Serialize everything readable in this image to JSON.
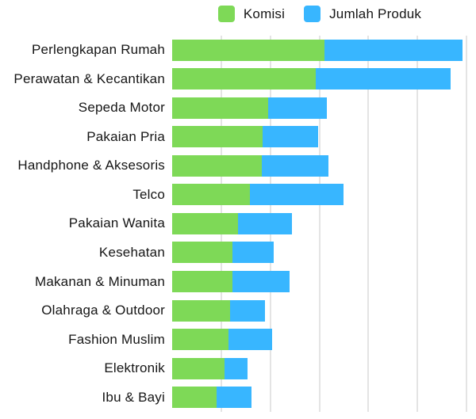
{
  "colors": {
    "komisi": "#7ED957",
    "jumlah_produk": "#38B6FF",
    "gridline": "#E4E4E4",
    "text": "#151515",
    "background": "#FFFFFF"
  },
  "legend": {
    "position": "top-center",
    "items": [
      {
        "label": "Komisi",
        "color": "#7ED957"
      },
      {
        "label": "Jumlah Produk",
        "color": "#38B6FF"
      }
    ]
  },
  "chart_data": {
    "type": "bar",
    "orientation": "horizontal",
    "stacked": true,
    "title": "",
    "xlabel": "",
    "ylabel": "",
    "categories": [
      "Perlengkapan Rumah",
      "Perawatan & Kecantikan",
      "Sepeda Motor",
      "Pakaian Pria",
      "Handphone & Aksesoris",
      "Telco",
      "Pakaian Wanita",
      "Kesehatan",
      "Makanan & Minuman",
      "Olahraga & Outdoor",
      "Fashion Muslim",
      "Elektronik",
      "Ibu & Bayi"
    ],
    "series": [
      {
        "name": "Komisi",
        "color": "#7ED957",
        "values": [
          3.11,
          2.92,
          1.95,
          1.85,
          1.83,
          1.59,
          1.35,
          1.23,
          1.23,
          1.18,
          1.15,
          1.07,
          0.91
        ]
      },
      {
        "name": "Jumlah Produk",
        "color": "#38B6FF",
        "values": [
          2.81,
          2.75,
          1.21,
          1.12,
          1.36,
          1.9,
          1.09,
          0.84,
          1.17,
          0.71,
          0.89,
          0.46,
          0.71
        ]
      }
    ],
    "xlim": [
      0,
      6
    ],
    "gridline_interval": 1,
    "grid": true,
    "x_tick_labels_visible": false,
    "legend_position": "top",
    "note_units": "no numeric axis labels visible; values estimated in gridline units"
  }
}
